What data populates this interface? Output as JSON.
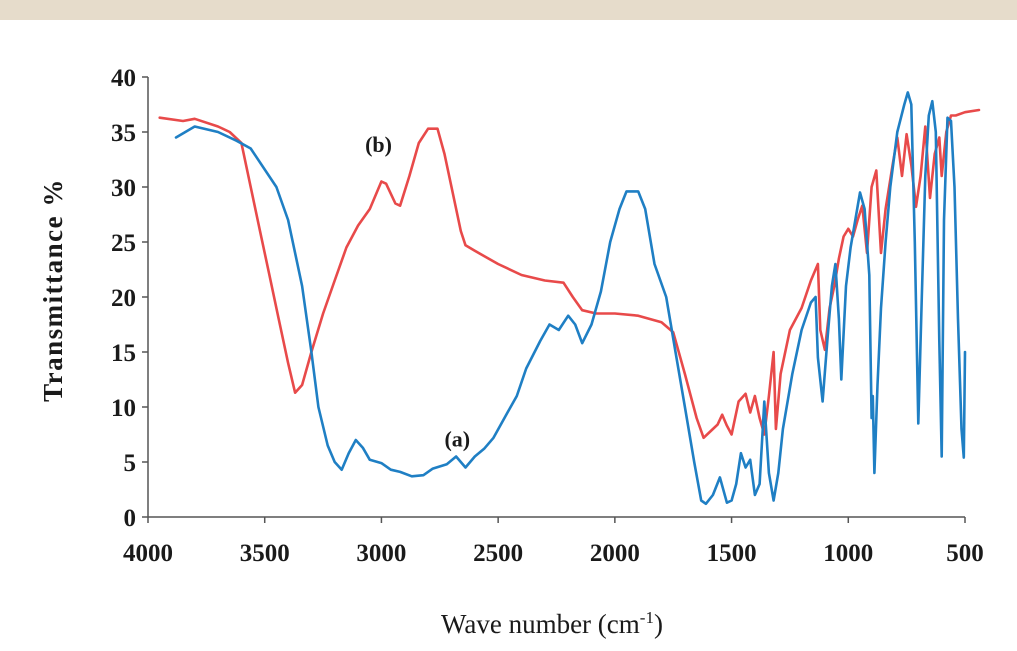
{
  "header_rule_color": "#e6dccb",
  "chart_data": {
    "type": "line",
    "title": "",
    "xlabel": "Wave number (cm",
    "xlabel_superscript": "-1",
    "xlabel_suffix": ")",
    "ylabel": "Transmittance %",
    "xlim": [
      4000,
      500
    ],
    "ylim": [
      0,
      40
    ],
    "x_ticks": [
      4000,
      3500,
      3000,
      2500,
      2000,
      1500,
      1000,
      500
    ],
    "y_ticks": [
      0,
      5,
      10,
      15,
      20,
      25,
      30,
      35,
      40
    ],
    "grid": false,
    "series": [
      {
        "name": "(a)",
        "color": "#1f7fc4",
        "points": [
          [
            3880,
            34.5
          ],
          [
            3800,
            35.5
          ],
          [
            3700,
            35
          ],
          [
            3620,
            34.2
          ],
          [
            3560,
            33.5
          ],
          [
            3450,
            30
          ],
          [
            3400,
            27
          ],
          [
            3340,
            21
          ],
          [
            3300,
            15
          ],
          [
            3270,
            10
          ],
          [
            3230,
            6.5
          ],
          [
            3200,
            5
          ],
          [
            3170,
            4.3
          ],
          [
            3140,
            5.8
          ],
          [
            3110,
            7
          ],
          [
            3080,
            6.3
          ],
          [
            3050,
            5.2
          ],
          [
            3000,
            4.9
          ],
          [
            2960,
            4.3
          ],
          [
            2920,
            4.1
          ],
          [
            2870,
            3.7
          ],
          [
            2820,
            3.8
          ],
          [
            2780,
            4.4
          ],
          [
            2720,
            4.8
          ],
          [
            2680,
            5.5
          ],
          [
            2640,
            4.5
          ],
          [
            2600,
            5.5
          ],
          [
            2560,
            6.2
          ],
          [
            2520,
            7.2
          ],
          [
            2460,
            9.5
          ],
          [
            2420,
            11
          ],
          [
            2380,
            13.5
          ],
          [
            2320,
            16
          ],
          [
            2280,
            17.5
          ],
          [
            2240,
            17
          ],
          [
            2200,
            18.3
          ],
          [
            2170,
            17.5
          ],
          [
            2140,
            15.8
          ],
          [
            2100,
            17.5
          ],
          [
            2060,
            20.5
          ],
          [
            2020,
            25
          ],
          [
            1980,
            28
          ],
          [
            1950,
            29.6
          ],
          [
            1900,
            29.6
          ],
          [
            1870,
            28
          ],
          [
            1830,
            23
          ],
          [
            1780,
            20
          ],
          [
            1740,
            15
          ],
          [
            1700,
            10
          ],
          [
            1660,
            5
          ],
          [
            1630,
            1.5
          ],
          [
            1610,
            1.2
          ],
          [
            1580,
            2
          ],
          [
            1550,
            3.6
          ],
          [
            1520,
            1.3
          ],
          [
            1500,
            1.5
          ],
          [
            1480,
            3
          ],
          [
            1460,
            5.8
          ],
          [
            1440,
            4.5
          ],
          [
            1420,
            5.2
          ],
          [
            1400,
            2
          ],
          [
            1380,
            3
          ],
          [
            1360,
            10.5
          ],
          [
            1340,
            4
          ],
          [
            1320,
            1.5
          ],
          [
            1300,
            4
          ],
          [
            1280,
            8
          ],
          [
            1240,
            13
          ],
          [
            1200,
            17
          ],
          [
            1160,
            19.5
          ],
          [
            1140,
            20
          ],
          [
            1130,
            14.5
          ],
          [
            1110,
            10.5
          ],
          [
            1090,
            16
          ],
          [
            1070,
            21
          ],
          [
            1055,
            23
          ],
          [
            1040,
            18
          ],
          [
            1030,
            12.5
          ],
          [
            1010,
            21
          ],
          [
            990,
            24.5
          ],
          [
            970,
            27
          ],
          [
            950,
            29.5
          ],
          [
            930,
            28
          ],
          [
            910,
            22
          ],
          [
            900,
            9
          ],
          [
            895,
            11
          ],
          [
            888,
            4
          ],
          [
            875,
            12
          ],
          [
            860,
            19
          ],
          [
            840,
            25
          ],
          [
            820,
            30
          ],
          [
            790,
            35
          ],
          [
            760,
            37.5
          ],
          [
            745,
            38.6
          ],
          [
            730,
            37.5
          ],
          [
            715,
            25
          ],
          [
            700,
            8.5
          ],
          [
            685,
            20
          ],
          [
            670,
            31
          ],
          [
            655,
            36.5
          ],
          [
            640,
            37.8
          ],
          [
            625,
            35
          ],
          [
            610,
            16
          ],
          [
            600,
            5.5
          ],
          [
            590,
            27
          ],
          [
            575,
            36.3
          ],
          [
            560,
            36
          ],
          [
            545,
            30
          ],
          [
            530,
            18
          ],
          [
            515,
            8
          ],
          [
            505,
            5.4
          ],
          [
            500,
            15
          ]
        ]
      },
      {
        "name": "(b)",
        "color": "#e84a4a",
        "points": [
          [
            3950,
            36.3
          ],
          [
            3850,
            36
          ],
          [
            3800,
            36.2
          ],
          [
            3700,
            35.5
          ],
          [
            3650,
            35
          ],
          [
            3600,
            34
          ],
          [
            3560,
            30
          ],
          [
            3520,
            26
          ],
          [
            3480,
            22
          ],
          [
            3440,
            18
          ],
          [
            3400,
            14
          ],
          [
            3370,
            11.3
          ],
          [
            3340,
            12
          ],
          [
            3300,
            15
          ],
          [
            3250,
            18.5
          ],
          [
            3200,
            21.5
          ],
          [
            3150,
            24.5
          ],
          [
            3100,
            26.5
          ],
          [
            3050,
            28
          ],
          [
            3000,
            30.5
          ],
          [
            2980,
            30.3
          ],
          [
            2940,
            28.5
          ],
          [
            2920,
            28.3
          ],
          [
            2880,
            31
          ],
          [
            2840,
            34
          ],
          [
            2800,
            35.3
          ],
          [
            2760,
            35.3
          ],
          [
            2730,
            33
          ],
          [
            2700,
            30
          ],
          [
            2660,
            26
          ],
          [
            2640,
            24.7
          ],
          [
            2600,
            24.2
          ],
          [
            2500,
            23
          ],
          [
            2400,
            22
          ],
          [
            2300,
            21.5
          ],
          [
            2220,
            21.3
          ],
          [
            2180,
            20
          ],
          [
            2140,
            18.8
          ],
          [
            2080,
            18.5
          ],
          [
            2000,
            18.5
          ],
          [
            1900,
            18.3
          ],
          [
            1800,
            17.7
          ],
          [
            1750,
            16.8
          ],
          [
            1700,
            13
          ],
          [
            1650,
            9
          ],
          [
            1620,
            7.2
          ],
          [
            1580,
            8
          ],
          [
            1560,
            8.4
          ],
          [
            1540,
            9.3
          ],
          [
            1520,
            8.3
          ],
          [
            1500,
            7.5
          ],
          [
            1470,
            10.5
          ],
          [
            1440,
            11.2
          ],
          [
            1420,
            9.5
          ],
          [
            1400,
            11
          ],
          [
            1380,
            9
          ],
          [
            1360,
            7.5
          ],
          [
            1340,
            11
          ],
          [
            1320,
            15
          ],
          [
            1310,
            8
          ],
          [
            1290,
            13
          ],
          [
            1250,
            17
          ],
          [
            1200,
            19
          ],
          [
            1160,
            21.5
          ],
          [
            1130,
            23
          ],
          [
            1120,
            17
          ],
          [
            1100,
            15.2
          ],
          [
            1080,
            19
          ],
          [
            1060,
            21
          ],
          [
            1040,
            23.5
          ],
          [
            1020,
            25.5
          ],
          [
            1000,
            26.2
          ],
          [
            980,
            25.5
          ],
          [
            960,
            27
          ],
          [
            940,
            28.3
          ],
          [
            920,
            24
          ],
          [
            900,
            30
          ],
          [
            880,
            31.5
          ],
          [
            860,
            24
          ],
          [
            840,
            28
          ],
          [
            810,
            32
          ],
          [
            790,
            34.5
          ],
          [
            770,
            31
          ],
          [
            750,
            34.8
          ],
          [
            730,
            32
          ],
          [
            710,
            28.2
          ],
          [
            690,
            31
          ],
          [
            670,
            35.5
          ],
          [
            650,
            29
          ],
          [
            630,
            33
          ],
          [
            610,
            34.5
          ],
          [
            600,
            31
          ],
          [
            580,
            35
          ],
          [
            560,
            36.5
          ],
          [
            540,
            36.5
          ],
          [
            500,
            36.8
          ],
          [
            440,
            37
          ]
        ]
      }
    ],
    "annotations": [
      {
        "label": "(a)",
        "x": 2730,
        "y": 6.4
      },
      {
        "label": "(b)",
        "x": 3070,
        "y": 33.2
      }
    ]
  }
}
